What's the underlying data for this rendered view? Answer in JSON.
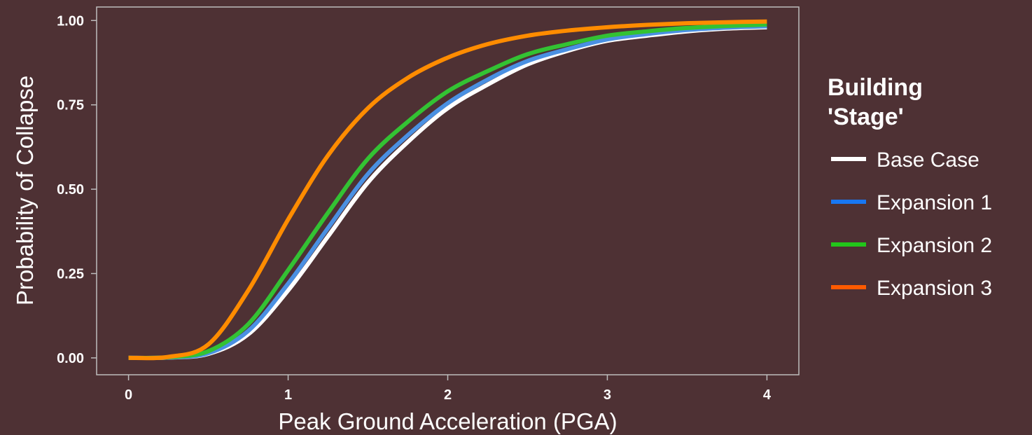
{
  "chart_data": {
    "type": "line",
    "xlabel": "Peak Ground Acceleration (PGA)",
    "ylabel": "Probability of Collapse",
    "xlim": [
      -0.2,
      4.2
    ],
    "ylim": [
      -0.05,
      1.04
    ],
    "x_ticks": [
      0,
      1,
      2,
      3,
      4
    ],
    "x_tick_labels": [
      "0",
      "1",
      "2",
      "3",
      "4"
    ],
    "y_ticks": [
      0,
      0.25,
      0.5,
      0.75,
      1
    ],
    "y_tick_labels": [
      "0.00",
      "0.25",
      "0.50",
      "0.75",
      "1.00"
    ],
    "grid": false,
    "legend": {
      "title_lines": [
        "Building",
        "'Stage'"
      ],
      "position": "right"
    },
    "x": [
      0,
      0.25,
      0.5,
      0.75,
      1.0,
      1.25,
      1.5,
      1.75,
      2.0,
      2.25,
      2.5,
      2.75,
      3.0,
      3.25,
      3.5,
      3.75,
      4.0
    ],
    "series": [
      {
        "name": "Base Case",
        "color": "#ffffff",
        "legend_color": "#ffffff",
        "values": [
          0.0,
          0.001,
          0.012,
          0.07,
          0.2,
          0.36,
          0.52,
          0.64,
          0.74,
          0.81,
          0.87,
          0.91,
          0.94,
          0.955,
          0.968,
          0.976,
          0.98
        ]
      },
      {
        "name": "Expansion 1",
        "color": "#4a90e2",
        "legend_color": "#1877f2",
        "values": [
          0.0,
          0.001,
          0.014,
          0.08,
          0.22,
          0.385,
          0.545,
          0.66,
          0.755,
          0.825,
          0.88,
          0.915,
          0.944,
          0.96,
          0.972,
          0.979,
          0.983
        ]
      },
      {
        "name": "Expansion 2",
        "color": "#33c233",
        "legend_color": "#22c61a",
        "values": [
          0.0,
          0.002,
          0.02,
          0.1,
          0.26,
          0.43,
          0.59,
          0.7,
          0.79,
          0.85,
          0.9,
          0.93,
          0.955,
          0.968,
          0.978,
          0.984,
          0.988
        ]
      },
      {
        "name": "Expansion 3",
        "color": "#ff8c00",
        "legend_color": "#ff5a00",
        "values": [
          0.0,
          0.003,
          0.04,
          0.2,
          0.41,
          0.6,
          0.74,
          0.83,
          0.89,
          0.93,
          0.955,
          0.97,
          0.98,
          0.987,
          0.992,
          0.995,
          0.997
        ]
      }
    ]
  }
}
